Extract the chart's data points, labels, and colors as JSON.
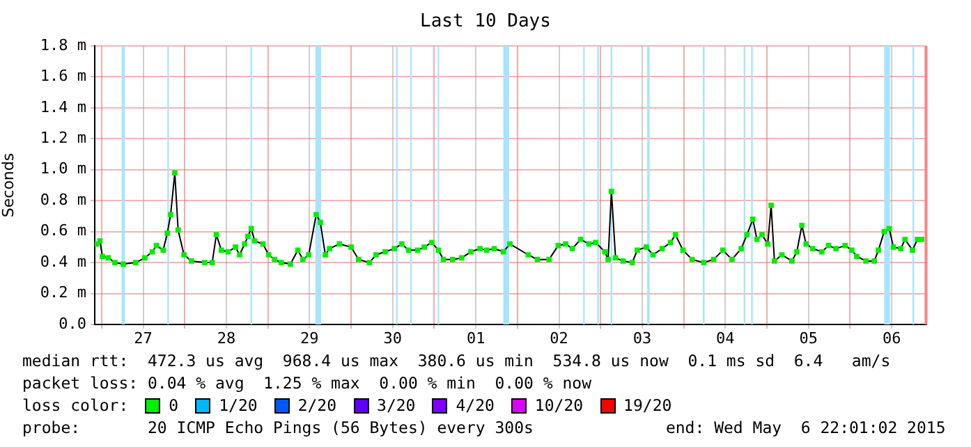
{
  "chart_data": {
    "type": "line",
    "title": "Last 10 Days",
    "ylabel": "Seconds",
    "legend_title": "loss color:",
    "legend": "bottom",
    "grid": true,
    "marker": "square",
    "line_style": "solid",
    "xlim": [
      "2015-04-26T22:01",
      "2015-05-06T22:01"
    ],
    "xticks": [
      {
        "value": "2015-04-27",
        "label": null
      },
      {
        "value": "2015-04-27T12:00",
        "label": "27"
      },
      {
        "value": "2015-04-28",
        "label": null
      },
      {
        "value": "2015-04-28T12:00",
        "label": "28"
      },
      {
        "value": "2015-04-29",
        "label": null
      },
      {
        "value": "2015-04-29T12:00",
        "label": "29"
      },
      {
        "value": "2015-04-30",
        "label": null
      },
      {
        "value": "2015-04-30T12:00",
        "label": "30"
      },
      {
        "value": "2015-05-01",
        "label": null
      },
      {
        "value": "2015-05-01T12:00",
        "label": "01"
      },
      {
        "value": "2015-05-02",
        "label": null
      },
      {
        "value": "2015-05-02T12:00",
        "label": "02"
      },
      {
        "value": "2015-05-03",
        "label": null
      },
      {
        "value": "2015-05-03T12:00",
        "label": "03"
      },
      {
        "value": "2015-05-04",
        "label": null
      },
      {
        "value": "2015-05-04T12:00",
        "label": "04"
      },
      {
        "value": "2015-05-05",
        "label": null
      },
      {
        "value": "2015-05-05T12:00",
        "label": "05"
      },
      {
        "value": "2015-05-06",
        "label": null
      },
      {
        "value": "2015-05-06T12:00",
        "label": "06"
      }
    ],
    "ylim": [
      0,
      1.8
    ],
    "yticks": [
      {
        "value": 0,
        "label": "0.0"
      },
      {
        "value": 0.2,
        "label": "0.2 m"
      },
      {
        "value": 0.4,
        "label": "0.4 m"
      },
      {
        "value": 0.6,
        "label": "0.6 m"
      },
      {
        "value": 0.8,
        "label": "0.8 m"
      },
      {
        "value": 1.0,
        "label": "1.0 m"
      },
      {
        "value": 1.2,
        "label": "1.2 m"
      },
      {
        "value": 1.4,
        "label": "1.4 m"
      },
      {
        "value": 1.6,
        "label": "1.6 m"
      },
      {
        "value": 1.8,
        "label": "1.8 m"
      }
    ],
    "series": [
      {
        "name": "0",
        "color": "#00ee00",
        "x": [
          "2015-04-26T22:34",
          "2015-04-26T23:31",
          "2015-04-27T00:14",
          "2015-04-27T01:55",
          "2015-04-27T03:50",
          "2015-04-27T06:14",
          "2015-04-27T09:50",
          "2015-04-27T12:29",
          "2015-04-27T14:38",
          "2015-04-27T15:50",
          "2015-04-27T17:46",
          "2015-04-27T18:58",
          "2015-04-27T19:55",
          "2015-04-27T21:07",
          "2015-04-27T22:05",
          "2015-04-27T23:46",
          "2015-04-28T01:55",
          "2015-04-28T05:46",
          "2015-04-28T07:55",
          "2015-04-28T09:07",
          "2015-04-28T10:34",
          "2015-04-28T12:29",
          "2015-04-28T14:38",
          "2015-04-28T15:50",
          "2015-04-28T17:17",
          "2015-04-28T18:14",
          "2015-04-28T19:12",
          "2015-04-28T20:10",
          "2015-04-28T22:34",
          "2015-04-29T00:14",
          "2015-04-29T01:55",
          "2015-04-29T03:50",
          "2015-04-29T06:29",
          "2015-04-29T08:38",
          "2015-04-29T10:05",
          "2015-04-29T11:46",
          "2015-04-29T13:55",
          "2015-04-29T15:07",
          "2015-04-29T16:34",
          "2015-04-29T17:46",
          "2015-04-29T20:38",
          "2015-04-30T00:00",
          "2015-04-30T02:10",
          "2015-04-30T05:17",
          "2015-04-30T07:12",
          "2015-04-30T09:50",
          "2015-04-30T12:29",
          "2015-04-30T14:38",
          "2015-04-30T16:34",
          "2015-04-30T19:12",
          "2015-04-30T21:07",
          "2015-04-30T23:17",
          "2015-05-01T01:12",
          "2015-05-01T02:38",
          "2015-05-01T05:17",
          "2015-05-01T07:55",
          "2015-05-01T10:34",
          "2015-05-01T13:12",
          "2015-05-01T15:07",
          "2015-05-01T17:17",
          "2015-05-01T19:55",
          "2015-05-01T21:50",
          "2015-05-02T03:07",
          "2015-05-02T05:46",
          "2015-05-02T09:07",
          "2015-05-02T11:46",
          "2015-05-02T13:55",
          "2015-05-02T15:50",
          "2015-05-02T18:14",
          "2015-05-02T20:38",
          "2015-05-02T22:34",
          "2015-05-03T01:12",
          "2015-05-03T02:10",
          "2015-05-03T03:07",
          "2015-05-03T04:19",
          "2015-05-03T06:29",
          "2015-05-03T09:07",
          "2015-05-03T10:34",
          "2015-05-03T13:12",
          "2015-05-03T15:07",
          "2015-05-03T17:46",
          "2015-05-03T20:10",
          "2015-05-03T21:36",
          "2015-05-03T23:46",
          "2015-05-04T02:24",
          "2015-05-04T05:46",
          "2015-05-04T08:38",
          "2015-05-04T11:17",
          "2015-05-04T13:55",
          "2015-05-04T16:34",
          "2015-05-04T18:14",
          "2015-05-04T19:55",
          "2015-05-04T21:07",
          "2015-05-04T22:34",
          "2015-05-05T00:14",
          "2015-05-05T01:12",
          "2015-05-05T02:10",
          "2015-05-05T04:19",
          "2015-05-05T07:12",
          "2015-05-05T08:38",
          "2015-05-05T10:05",
          "2015-05-05T11:17",
          "2015-05-05T13:12",
          "2015-05-05T15:50",
          "2015-05-05T17:46",
          "2015-05-05T19:55",
          "2015-05-05T22:34",
          "2015-05-06T00:29",
          "2015-05-06T01:55",
          "2015-05-06T04:34",
          "2015-05-06T06:58",
          "2015-05-06T08:10",
          "2015-05-06T09:50",
          "2015-05-06T11:17",
          "2015-05-06T12:29",
          "2015-05-06T14:38",
          "2015-05-06T15:50",
          "2015-05-06T18:00",
          "2015-05-06T19:26",
          "2015-05-06T20:38"
        ],
        "values": [
          0.52,
          0.54,
          0.44,
          0.43,
          0.4,
          0.39,
          0.4,
          0.43,
          0.47,
          0.51,
          0.48,
          0.59,
          0.71,
          0.98,
          0.61,
          0.45,
          0.41,
          0.4,
          0.4,
          0.58,
          0.48,
          0.47,
          0.5,
          0.45,
          0.52,
          0.57,
          0.62,
          0.54,
          0.52,
          0.45,
          0.42,
          0.4,
          0.39,
          0.48,
          0.42,
          0.45,
          0.71,
          0.66,
          0.45,
          0.49,
          0.52,
          0.5,
          0.42,
          0.4,
          0.45,
          0.47,
          0.49,
          0.52,
          0.48,
          0.48,
          0.5,
          0.53,
          0.48,
          0.42,
          0.42,
          0.43,
          0.47,
          0.49,
          0.48,
          0.49,
          0.47,
          0.52,
          0.45,
          0.42,
          0.42,
          0.51,
          0.52,
          0.49,
          0.55,
          0.52,
          0.53,
          0.47,
          0.42,
          0.86,
          0.43,
          0.41,
          0.4,
          0.48,
          0.5,
          0.45,
          0.49,
          0.53,
          0.58,
          0.48,
          0.42,
          0.4,
          0.42,
          0.48,
          0.42,
          0.49,
          0.58,
          0.68,
          0.55,
          0.58,
          0.52,
          0.77,
          0.41,
          0.45,
          0.41,
          0.47,
          0.64,
          0.52,
          0.49,
          0.47,
          0.51,
          0.49,
          0.51,
          0.48,
          0.44,
          0.41,
          0.41,
          0.48,
          0.6,
          0.62,
          0.5,
          0.49,
          0.55,
          0.48,
          0.55,
          0.55
        ]
      },
      {
        "name": "1/20",
        "color": "#00b8ff"
      },
      {
        "name": "2/20",
        "color": "#0059ff"
      },
      {
        "name": "3/20",
        "color": "#5e00ff"
      },
      {
        "name": "4/20",
        "color": "#7e00ff"
      },
      {
        "name": "10/20",
        "color": "#dd00ff"
      },
      {
        "name": "19/20",
        "color": "#ff0000"
      }
    ],
    "bands": [
      {
        "axis": "x",
        "from": "2015-04-27T05:46",
        "to": "2015-04-27T06:43",
        "color": "#a8e4ff"
      },
      {
        "axis": "x",
        "from": "2015-04-27T18:58",
        "to": "2015-04-27T19:26",
        "color": "#a8e4ff"
      },
      {
        "axis": "x",
        "from": "2015-04-28T18:58",
        "to": "2015-04-28T19:26",
        "color": "#a8e4ff"
      },
      {
        "axis": "x",
        "from": "2015-04-29T13:41",
        "to": "2015-04-29T15:22",
        "color": "#a8e4ff"
      },
      {
        "axis": "x",
        "from": "2015-04-30T12:58",
        "to": "2015-04-30T13:26",
        "color": "#a8e4ff"
      },
      {
        "axis": "x",
        "from": "2015-04-30T17:02",
        "to": "2015-04-30T17:31",
        "color": "#a8e4ff"
      },
      {
        "axis": "x",
        "from": "2015-05-01T00:58",
        "to": "2015-05-01T01:26",
        "color": "#a8e4ff"
      },
      {
        "axis": "x",
        "from": "2015-05-01T19:55",
        "to": "2015-05-01T21:36",
        "color": "#a8e4ff"
      },
      {
        "axis": "x",
        "from": "2015-05-02T18:58",
        "to": "2015-05-02T19:26",
        "color": "#a8e4ff"
      },
      {
        "axis": "x",
        "from": "2015-05-02T23:02",
        "to": "2015-05-02T23:31",
        "color": "#a8e4ff"
      },
      {
        "axis": "x",
        "from": "2015-05-03T02:53",
        "to": "2015-05-03T03:22",
        "color": "#a8e4ff"
      },
      {
        "axis": "x",
        "from": "2015-05-03T13:26",
        "to": "2015-05-03T14:10",
        "color": "#a8e4ff"
      },
      {
        "axis": "x",
        "from": "2015-05-04T05:31",
        "to": "2015-05-04T06:00",
        "color": "#a8e4ff"
      },
      {
        "axis": "x",
        "from": "2015-05-04T17:17",
        "to": "2015-05-04T17:46",
        "color": "#a8e4ff"
      },
      {
        "axis": "x",
        "from": "2015-05-04T19:26",
        "to": "2015-05-04T19:55",
        "color": "#a8e4ff"
      },
      {
        "axis": "x",
        "from": "2015-05-06T09:50",
        "to": "2015-05-06T11:31",
        "color": "#a8e4ff"
      },
      {
        "axis": "x",
        "from": "2015-05-06T18:00",
        "to": "2015-05-06T18:29",
        "color": "#a8e4ff"
      }
    ],
    "ref_lines": [
      {
        "axis": "x",
        "value": "2015-05-06T21:55",
        "color": "#ff8080"
      }
    ],
    "annotations": [
      "median rtt:  472.3 us avg  968.4 us max  380.6 us min  534.8 us now  0.1 ms sd  6.4   am/s",
      "packet loss: 0.04 % avg  1.25 % max  0.00 % min  0.00 % now",
      "probe:       20 ICMP Echo Pings (56 Bytes) every 300s",
      "end: Wed May  6 22:01:02 2015"
    ]
  }
}
